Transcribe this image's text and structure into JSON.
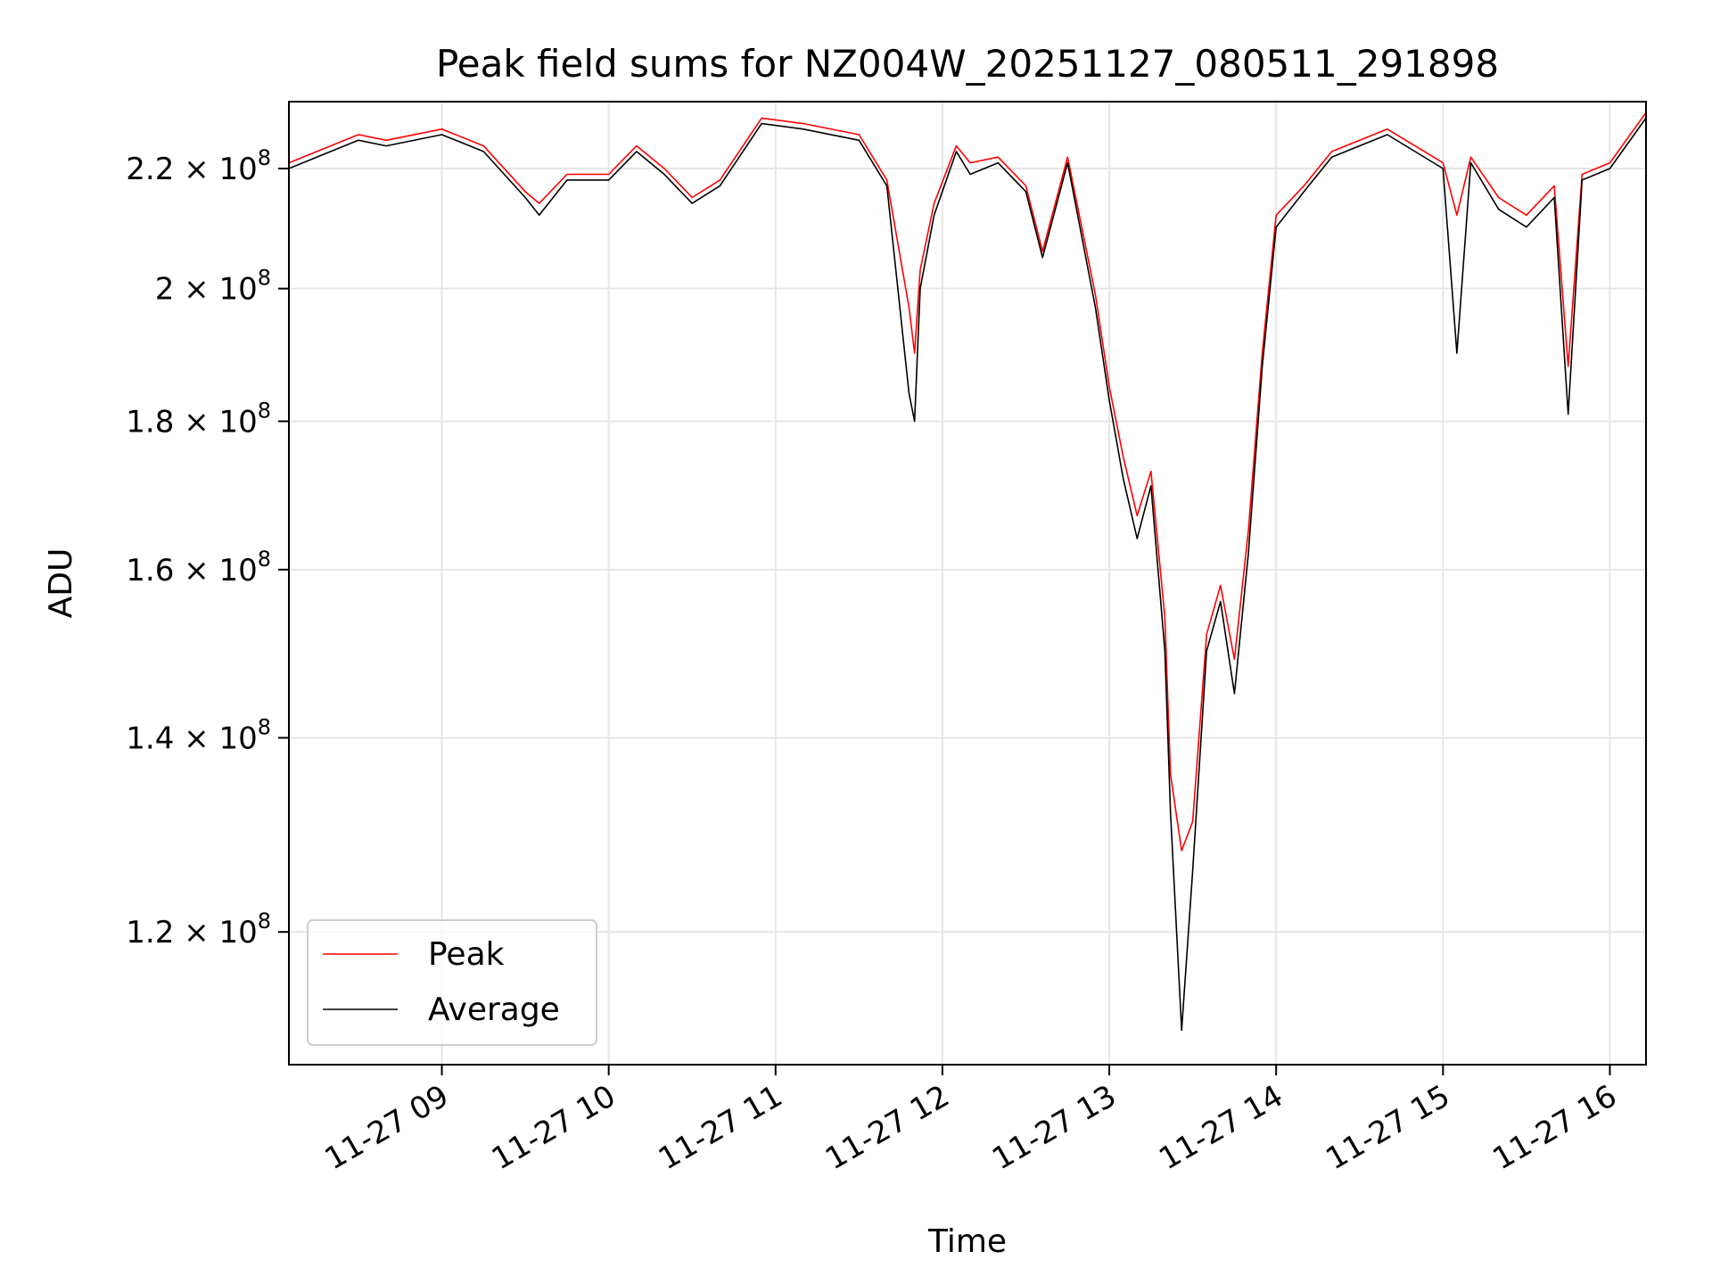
{
  "chart_data": {
    "type": "line",
    "title": "Peak field sums for NZ004W_20251127_080511_291898",
    "xlabel": "Time",
    "ylabel": "ADU",
    "y_scale": "log",
    "grid": true,
    "legend_placement": "lower-left",
    "xlim": [
      "2025-11-27 08:05",
      "2025-11-27 16:13"
    ],
    "ylim": [
      108000000,
      232000000
    ],
    "x_ticks": [
      "11-27 09",
      "11-27 10",
      "11-27 11",
      "11-27 12",
      "11-27 13",
      "11-27 14",
      "11-27 15",
      "11-27 16"
    ],
    "x_tick_values": [
      "2025-11-27 09:00",
      "2025-11-27 10:00",
      "2025-11-27 11:00",
      "2025-11-27 12:00",
      "2025-11-27 13:00",
      "2025-11-27 14:00",
      "2025-11-27 15:00",
      "2025-11-27 16:00"
    ],
    "y_ticks": [
      {
        "value": 120000000,
        "mantissa": "1.2",
        "exp": "8"
      },
      {
        "value": 140000000,
        "mantissa": "1.4",
        "exp": "8"
      },
      {
        "value": 160000000,
        "mantissa": "1.6",
        "exp": "8"
      },
      {
        "value": 180000000,
        "mantissa": "1.8",
        "exp": "8"
      },
      {
        "value": 200000000,
        "mantissa": "2",
        "exp": "8"
      },
      {
        "value": 220000000,
        "mantissa": "2.2",
        "exp": "8"
      }
    ],
    "colors": {
      "Peak": "#ff0000",
      "Average": "#000000"
    },
    "series": [
      {
        "name": "Peak",
        "x": [
          "2025-11-27 08:05",
          "2025-11-27 08:20",
          "2025-11-27 08:30",
          "2025-11-27 08:40",
          "2025-11-27 09:00",
          "2025-11-27 09:15",
          "2025-11-27 09:30",
          "2025-11-27 09:35",
          "2025-11-27 09:45",
          "2025-11-27 10:00",
          "2025-11-27 10:10",
          "2025-11-27 10:20",
          "2025-11-27 10:30",
          "2025-11-27 10:40",
          "2025-11-27 10:55",
          "2025-11-27 11:10",
          "2025-11-27 11:30",
          "2025-11-27 11:40",
          "2025-11-27 11:48",
          "2025-11-27 11:50",
          "2025-11-27 11:52",
          "2025-11-27 11:57",
          "2025-11-27 12:05",
          "2025-11-27 12:10",
          "2025-11-27 12:20",
          "2025-11-27 12:30",
          "2025-11-27 12:36",
          "2025-11-27 12:45",
          "2025-11-27 12:55",
          "2025-11-27 13:00",
          "2025-11-27 13:05",
          "2025-11-27 13:10",
          "2025-11-27 13:15",
          "2025-11-27 13:20",
          "2025-11-27 13:22",
          "2025-11-27 13:26",
          "2025-11-27 13:30",
          "2025-11-27 13:35",
          "2025-11-27 13:40",
          "2025-11-27 13:45",
          "2025-11-27 13:50",
          "2025-11-27 13:55",
          "2025-11-27 14:00",
          "2025-11-27 14:10",
          "2025-11-27 14:20",
          "2025-11-27 14:40",
          "2025-11-27 15:00",
          "2025-11-27 15:05",
          "2025-11-27 15:10",
          "2025-11-27 15:20",
          "2025-11-27 15:30",
          "2025-11-27 15:40",
          "2025-11-27 15:45",
          "2025-11-27 15:50",
          "2025-11-27 16:00",
          "2025-11-27 16:13"
        ],
        "values": [
          221000000,
          224000000,
          226000000,
          225000000,
          227000000,
          224000000,
          216000000,
          214000000,
          219000000,
          219000000,
          224000000,
          220000000,
          215000000,
          218000000,
          229000000,
          228000000,
          226000000,
          218000000,
          197000000,
          190000000,
          203000000,
          214000000,
          224000000,
          221000000,
          222000000,
          217000000,
          206000000,
          222000000,
          199000000,
          185000000,
          175000000,
          167000000,
          173000000,
          154000000,
          136000000,
          128000000,
          131000000,
          152000000,
          158000000,
          149000000,
          165000000,
          190000000,
          212000000,
          217000000,
          223000000,
          227000000,
          221000000,
          212000000,
          222000000,
          215000000,
          212000000,
          217000000,
          188000000,
          219000000,
          221000000,
          230000000
        ]
      },
      {
        "name": "Average",
        "x": [
          "2025-11-27 08:05",
          "2025-11-27 08:20",
          "2025-11-27 08:30",
          "2025-11-27 08:40",
          "2025-11-27 09:00",
          "2025-11-27 09:15",
          "2025-11-27 09:30",
          "2025-11-27 09:35",
          "2025-11-27 09:45",
          "2025-11-27 10:00",
          "2025-11-27 10:10",
          "2025-11-27 10:20",
          "2025-11-27 10:30",
          "2025-11-27 10:40",
          "2025-11-27 10:55",
          "2025-11-27 11:10",
          "2025-11-27 11:30",
          "2025-11-27 11:40",
          "2025-11-27 11:48",
          "2025-11-27 11:50",
          "2025-11-27 11:52",
          "2025-11-27 11:57",
          "2025-11-27 12:05",
          "2025-11-27 12:10",
          "2025-11-27 12:20",
          "2025-11-27 12:30",
          "2025-11-27 12:36",
          "2025-11-27 12:45",
          "2025-11-27 12:55",
          "2025-11-27 13:00",
          "2025-11-27 13:05",
          "2025-11-27 13:10",
          "2025-11-27 13:15",
          "2025-11-27 13:20",
          "2025-11-27 13:22",
          "2025-11-27 13:26",
          "2025-11-27 13:30",
          "2025-11-27 13:35",
          "2025-11-27 13:40",
          "2025-11-27 13:45",
          "2025-11-27 13:50",
          "2025-11-27 13:55",
          "2025-11-27 14:00",
          "2025-11-27 14:10",
          "2025-11-27 14:20",
          "2025-11-27 14:40",
          "2025-11-27 15:00",
          "2025-11-27 15:05",
          "2025-11-27 15:10",
          "2025-11-27 15:20",
          "2025-11-27 15:30",
          "2025-11-27 15:40",
          "2025-11-27 15:45",
          "2025-11-27 15:50",
          "2025-11-27 16:00",
          "2025-11-27 16:13"
        ],
        "values": [
          220000000,
          223000000,
          225000000,
          224000000,
          226000000,
          223000000,
          215000000,
          212000000,
          218000000,
          218000000,
          223000000,
          219000000,
          214000000,
          217000000,
          228000000,
          227000000,
          225000000,
          217000000,
          184000000,
          180000000,
          200000000,
          212000000,
          223000000,
          219000000,
          221000000,
          216000000,
          205000000,
          221000000,
          197000000,
          183000000,
          172000000,
          164000000,
          171000000,
          150000000,
          132000000,
          111000000,
          126000000,
          150000000,
          156000000,
          145000000,
          162000000,
          188000000,
          210000000,
          216000000,
          222000000,
          226000000,
          220000000,
          190000000,
          221000000,
          213000000,
          210000000,
          215000000,
          181000000,
          218000000,
          220000000,
          229000000
        ]
      }
    ]
  }
}
